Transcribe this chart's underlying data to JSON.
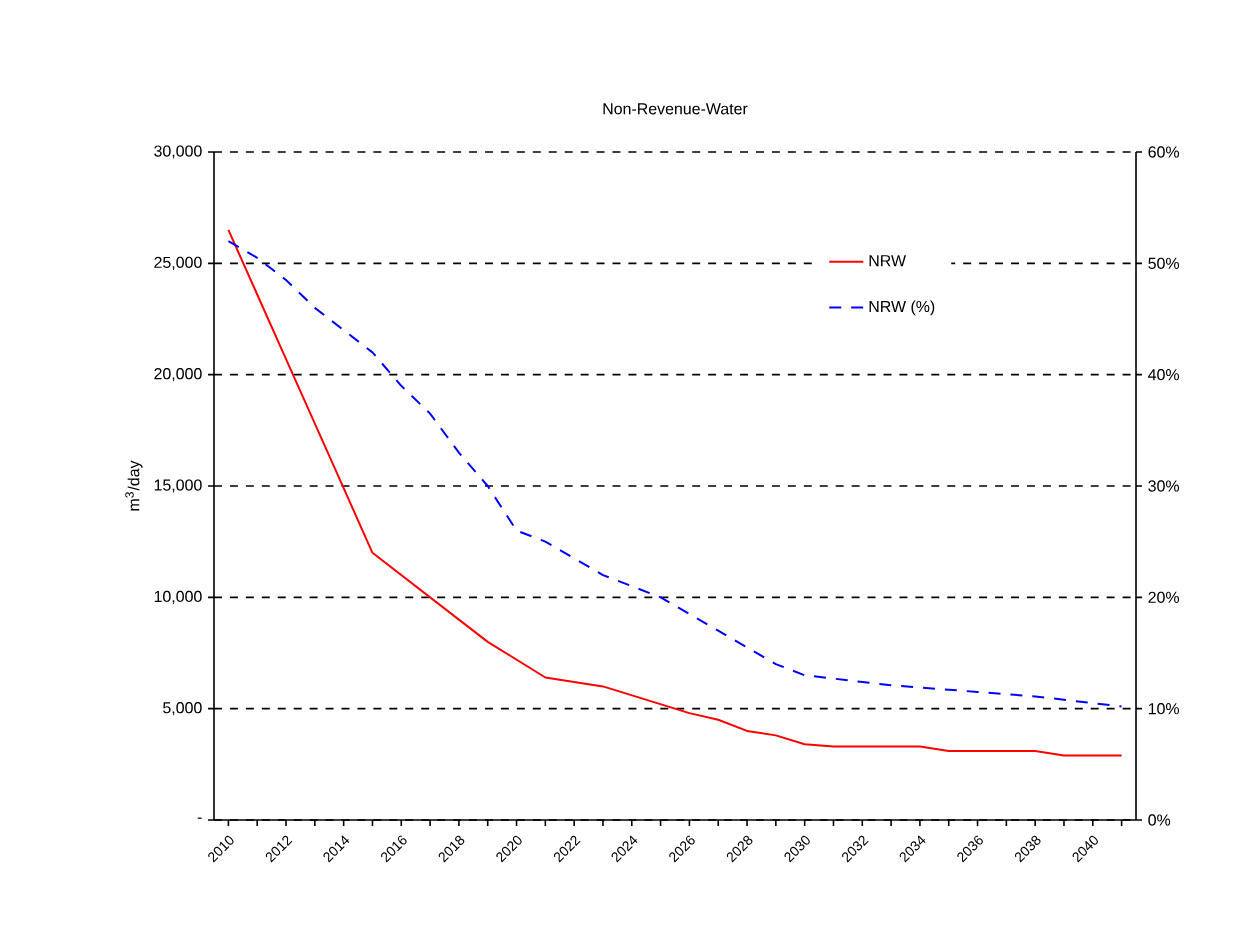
{
  "chart_data": {
    "type": "line",
    "title": "Non-Revenue-Water",
    "ylabel": "m$^{3}$/day",
    "categories": [
      "2010",
      null,
      "2012",
      null,
      "2014",
      null,
      "2016",
      null,
      "2018",
      null,
      "2020",
      null,
      "2022",
      null,
      "2024",
      null,
      "2026",
      null,
      "2028",
      null,
      "2030",
      null,
      "2032",
      null,
      "2034",
      null,
      "2036",
      null,
      "2038",
      null,
      "2040",
      null
    ],
    "series": [
      {
        "name": "NRW",
        "color": "#ff0000",
        "line_style": "solid",
        "values": [
          26500,
          23600,
          20700,
          17800,
          14900,
          12000,
          11000,
          10000,
          9000,
          8000,
          7200,
          6400,
          6200,
          6000,
          5600,
          5200,
          4800,
          4500,
          4000,
          3800,
          3400,
          3300,
          3300,
          3300,
          3300,
          3100,
          3100,
          3100,
          3100,
          2900,
          2900,
          2900
        ]
      },
      {
        "name": "NRW (%)",
        "color": "#0000ff",
        "line_style": "dashed",
        "axis": "y2",
        "values": [
          52,
          50.5,
          48.5,
          46,
          44,
          42,
          39,
          36.5,
          33,
          30,
          26,
          25,
          23.5,
          22,
          21,
          20,
          18.5,
          17,
          15.5,
          14,
          13,
          12.7,
          12.4,
          12.1,
          11.9,
          11.7,
          11.5,
          11.3,
          11.1,
          10.8,
          10.5,
          10.2
        ]
      }
    ],
    "ylim": [
      0,
      30000
    ],
    "yticks": [
      {
        "value": 0,
        "label": "-"
      },
      {
        "value": 5000,
        "label": "5,000"
      },
      {
        "value": 10000,
        "label": "10,000"
      },
      {
        "value": 15000,
        "label": "15,000"
      },
      {
        "value": 20000,
        "label": "20,000"
      },
      {
        "value": 25000,
        "label": "25,000"
      },
      {
        "value": 30000,
        "label": "30,000"
      }
    ],
    "y2lim": [
      0,
      60
    ],
    "y2ticks": [
      {
        "value": 0,
        "label": "0%"
      },
      {
        "value": 10,
        "label": "10%"
      },
      {
        "value": 20,
        "label": "20%"
      },
      {
        "value": 30,
        "label": "30%"
      },
      {
        "value": 40,
        "label": "40%"
      },
      {
        "value": 50,
        "label": "50%"
      },
      {
        "value": 60,
        "label": "60%"
      }
    ],
    "grid": "y",
    "legend": "top right"
  }
}
